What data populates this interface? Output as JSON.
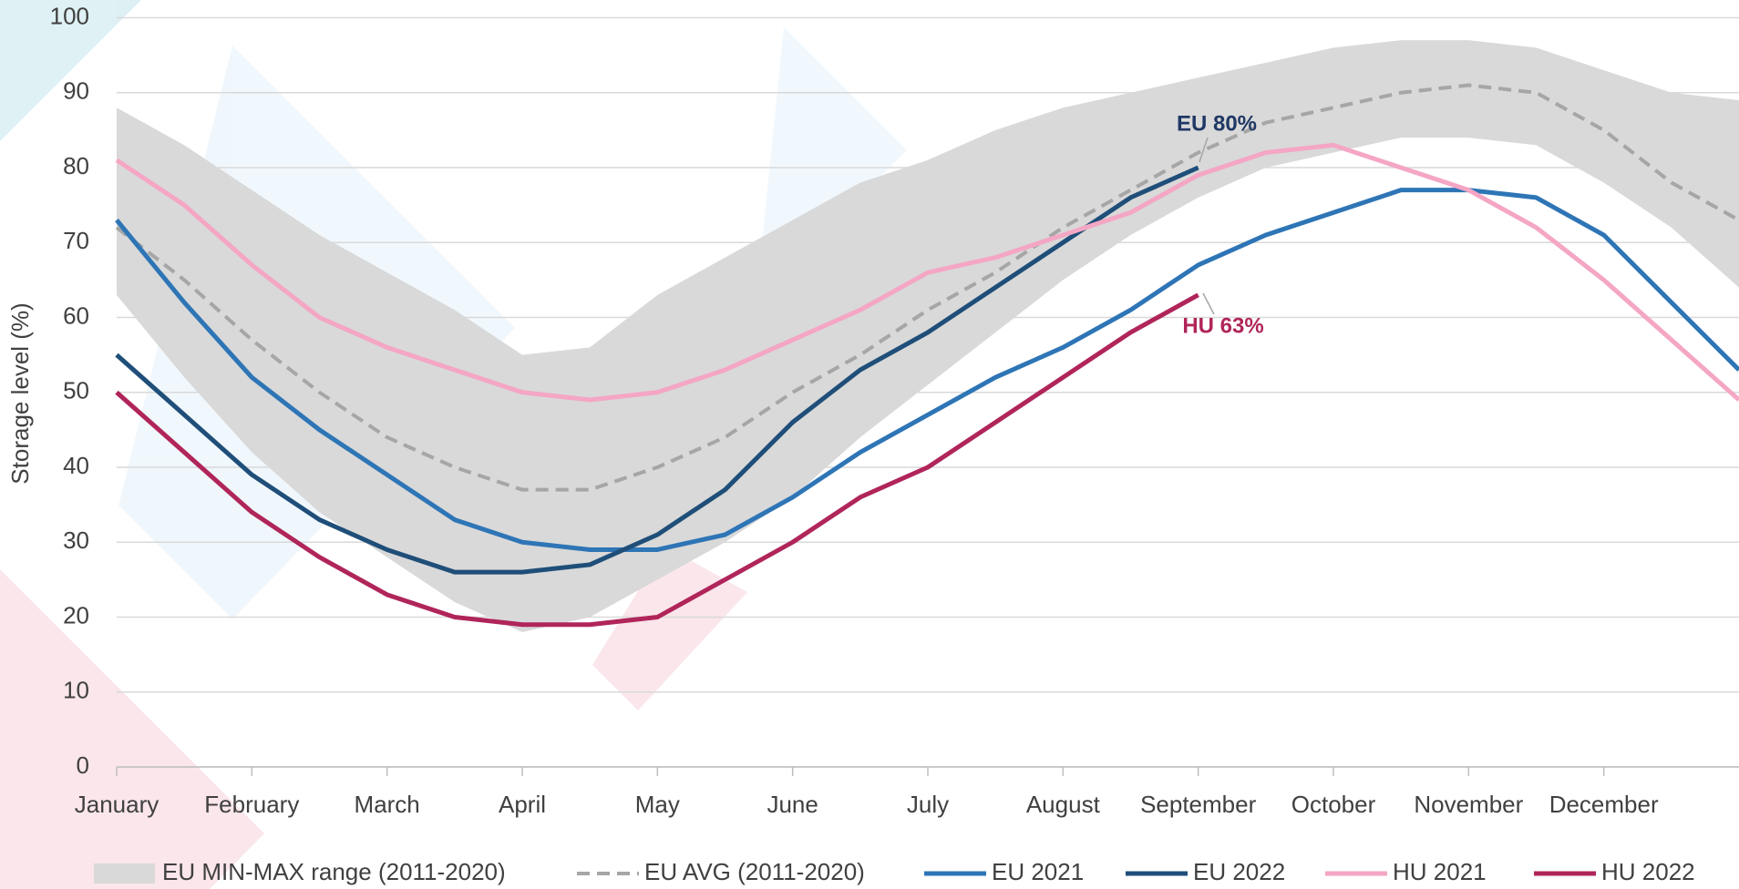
{
  "chart_data": {
    "type": "line",
    "y_label": "Storage level (%)",
    "categories": [
      "January",
      null,
      "February",
      null,
      "March",
      null,
      "April",
      null,
      "May",
      null,
      "June",
      null,
      "July",
      null,
      "August",
      null,
      "September",
      null,
      "October",
      null,
      "November",
      null,
      "December",
      null,
      null
    ],
    "ylim": [
      0,
      100
    ],
    "yticks": [
      0,
      10,
      20,
      30,
      40,
      50,
      60,
      70,
      80,
      90,
      100
    ],
    "grid": true,
    "legend": "bottom",
    "band": {
      "name": "EU MIN-MAX range (2011-2020)",
      "color": "#d9d9d9",
      "lower": [
        63,
        52,
        42,
        34,
        28,
        22,
        18,
        20,
        25,
        30,
        36,
        44,
        51,
        58,
        65,
        71,
        76,
        80,
        82,
        84,
        84,
        83,
        78,
        72,
        64
      ],
      "upper": [
        88,
        83,
        77,
        71,
        66,
        61,
        55,
        56,
        63,
        68,
        73,
        78,
        81,
        85,
        88,
        90,
        92,
        94,
        96,
        97,
        97,
        96,
        93,
        90,
        89
      ]
    },
    "series": [
      {
        "name": "EU AVG (2011-2020)",
        "color": "#a6a6a6",
        "dashed": true,
        "values": [
          72,
          65,
          57,
          50,
          44,
          40,
          37,
          37,
          40,
          44,
          50,
          55,
          61,
          66,
          72,
          77,
          82,
          86,
          88,
          90,
          91,
          90,
          85,
          78,
          73
        ]
      },
      {
        "name": "EU 2021",
        "color": "#2e75b6",
        "values": [
          73,
          62,
          52,
          45,
          39,
          33,
          30,
          29,
          29,
          31,
          36,
          42,
          47,
          52,
          56,
          61,
          67,
          71,
          74,
          77,
          77,
          76,
          71,
          62,
          53
        ]
      },
      {
        "name": "EU 2022",
        "color": "#1f4e79",
        "values": [
          55,
          47,
          39,
          33,
          29,
          26,
          26,
          27,
          31,
          37,
          46,
          53,
          58,
          64,
          70,
          76,
          80,
          null,
          null,
          null,
          null,
          null,
          null,
          null,
          null
        ]
      },
      {
        "name": "HU 2021",
        "color": "#f4a6c4",
        "values": [
          81,
          75,
          67,
          60,
          56,
          53,
          50,
          49,
          50,
          53,
          57,
          61,
          66,
          68,
          71,
          74,
          79,
          82,
          83,
          80,
          77,
          72,
          65,
          57,
          49
        ]
      },
      {
        "name": "HU 2022",
        "color": "#b0255a",
        "values": [
          50,
          42,
          34,
          28,
          23,
          20,
          19,
          19,
          20,
          25,
          30,
          36,
          40,
          46,
          52,
          58,
          63,
          null,
          null,
          null,
          null,
          null,
          null,
          null,
          null
        ]
      }
    ],
    "annotations": [
      {
        "text": "EU 80%",
        "color": "#1f3864"
      },
      {
        "text": "HU 63%",
        "color": "#b0255a"
      }
    ]
  }
}
